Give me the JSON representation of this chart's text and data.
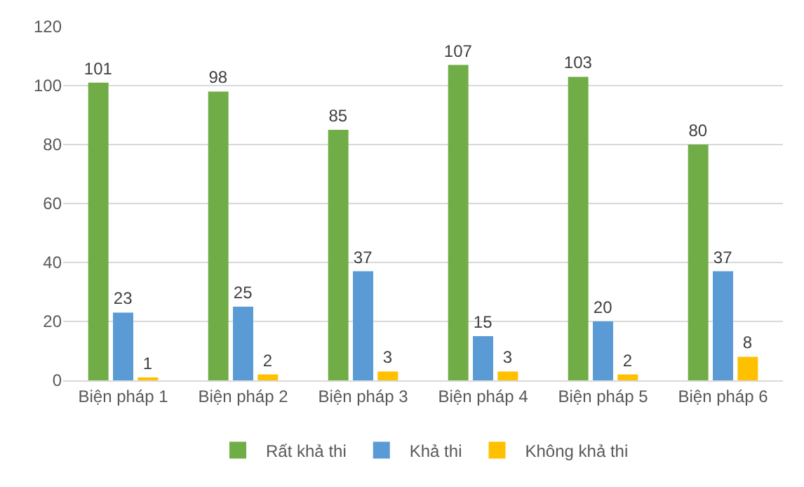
{
  "chart_data": {
    "type": "bar",
    "categories": [
      "Biện pháp 1",
      "Biện pháp 2",
      "Biện pháp 3",
      "Biện pháp 4",
      "Biện pháp 5",
      "Biện pháp 6"
    ],
    "series": [
      {
        "name": "Rất khả thi",
        "color": "#70ad47",
        "values": [
          101,
          98,
          85,
          107,
          103,
          80
        ]
      },
      {
        "name": "Khả thi",
        "color": "#5b9bd5",
        "values": [
          23,
          25,
          37,
          15,
          20,
          37
        ]
      },
      {
        "name": "Không khả thi",
        "color": "#ffc000",
        "values": [
          1,
          2,
          3,
          3,
          2,
          8
        ]
      }
    ],
    "ylim": [
      0,
      120
    ],
    "yticks": [
      0,
      20,
      40,
      60,
      80,
      100,
      120
    ],
    "grid": "y",
    "legend": "bottom",
    "data_labels": true
  }
}
